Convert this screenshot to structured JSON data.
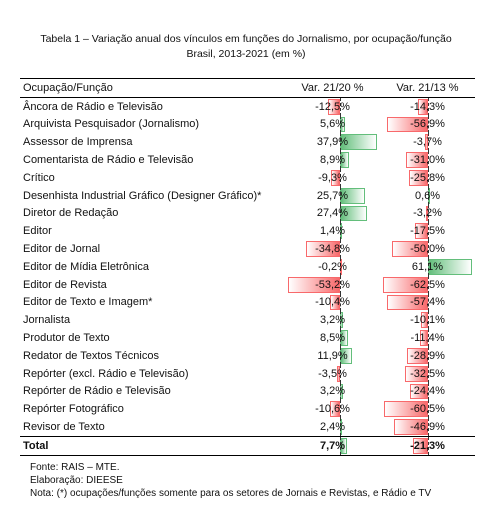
{
  "title": [
    "Tabela 1 – Variação anual dos vínculos em funções do Jornalismo, por ocupação/função",
    "Brasil, 2013-2021 (em %)"
  ],
  "table": {
    "header": "Ocupação/Função",
    "rows": [
      "Âncora de Rádio e Televisão",
      "Arquivista Pesquisador (Jornalismo)",
      "Assessor de Imprensa",
      "Comentarista de Rádio e Televisão",
      "Crítico",
      "Desenhista Industrial Gráfico (Designer Gráfico)*",
      "Diretor de Redação",
      "Editor",
      "Editor de Jornal",
      "Editor de Mídia Eletrônica",
      "Editor de Revista",
      "Editor de Texto e Imagem*",
      "Jornalista",
      "Produtor de Texto",
      "Redator de Textos Técnicos",
      "Repórter (excl. Rádio e Televisão)",
      "Repórter de Rádio e Televisão",
      "Repórter Fotográfico",
      "Revisor de Texto"
    ],
    "total_label": "Total",
    "positive_color": "#63be7b",
    "negative_color": "#f8696b",
    "columns": [
      {
        "header": "Var. 21/20 %",
        "values": [
          -12.5,
          5.6,
          37.9,
          8.9,
          -9.3,
          25.7,
          27.4,
          1.4,
          -34.8,
          -0.2,
          -53.2,
          -10.4,
          3.2,
          8.5,
          11.9,
          -3.5,
          3.2,
          -10.6,
          2.4
        ],
        "value_labels": [
          "-12,5%",
          "5,6%",
          "37,9%",
          "8,9%",
          "-9,3%",
          "25,7%",
          "27,4%",
          "1,4%",
          "-34,8%",
          "-0,2%",
          "-53,2%",
          "-10,4%",
          "3,2%",
          "8,5%",
          "11,9%",
          "-3,5%",
          "3,2%",
          "-10,6%",
          "2,4%"
        ],
        "total_value": 7.7,
        "total_value_label": "7,7%"
      },
      {
        "header": "Var. 21/13 %",
        "values": [
          -14.3,
          -56.9,
          -3.7,
          -31.0,
          -25.8,
          0.6,
          -3.2,
          -17.5,
          -50.0,
          61.1,
          -62.5,
          -57.4,
          -10.1,
          -11.4,
          -28.9,
          -32.5,
          -24.4,
          -60.5,
          -46.9
        ],
        "value_labels": [
          "-14,3%",
          "-56,9%",
          "-3,7%",
          "-31,0%",
          "-25,8%",
          "0,6%",
          "-3,2%",
          "-17,5%",
          "-50,0%",
          "61,1%",
          "-62,5%",
          "-57,4%",
          "-10,1%",
          "-11,4%",
          "-28,9%",
          "-32,5%",
          "-24,4%",
          "-60,5%",
          "-46,9%"
        ],
        "total_value": -21.3,
        "total_value_label": "-21,3%"
      }
    ]
  },
  "footnotes": [
    "Fonte: RAIS – MTE.",
    "Elaboração: DIEESE",
    "Nota: (*) ocupações/funções somente para os setores de Jornais e Revistas, e Rádio e TV"
  ]
}
